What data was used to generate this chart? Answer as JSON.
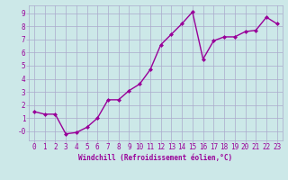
{
  "x": [
    0,
    1,
    2,
    3,
    4,
    5,
    6,
    7,
    8,
    9,
    10,
    11,
    12,
    13,
    14,
    15,
    16,
    17,
    18,
    19,
    20,
    21,
    22,
    23
  ],
  "y": [
    1.5,
    1.3,
    1.3,
    -0.2,
    -0.1,
    0.3,
    1.0,
    2.4,
    2.4,
    3.1,
    3.6,
    4.7,
    6.6,
    7.4,
    8.2,
    9.1,
    5.5,
    6.9,
    7.2,
    7.2,
    7.6,
    7.7,
    8.7,
    8.2
  ],
  "line_color": "#990099",
  "marker": "D",
  "markersize": 2,
  "linewidth": 1.0,
  "xlabel": "Windchill (Refroidissement éolien,°C)",
  "xlim": [
    -0.5,
    23.5
  ],
  "ylim": [
    -0.7,
    9.6
  ],
  "ytick_labels": [
    "-0",
    "1",
    "2",
    "3",
    "4",
    "5",
    "6",
    "7",
    "8",
    "9"
  ],
  "ytick_vals": [
    0,
    1,
    2,
    3,
    4,
    5,
    6,
    7,
    8,
    9
  ],
  "xticks": [
    0,
    1,
    2,
    3,
    4,
    5,
    6,
    7,
    8,
    9,
    10,
    11,
    12,
    13,
    14,
    15,
    16,
    17,
    18,
    19,
    20,
    21,
    22,
    23
  ],
  "bg_color": "#cce8e8",
  "grid_color": "#aaaacc",
  "line_tick_color": "#990099",
  "xlabel_fontsize": 5.5,
  "tick_fontsize": 5.5
}
